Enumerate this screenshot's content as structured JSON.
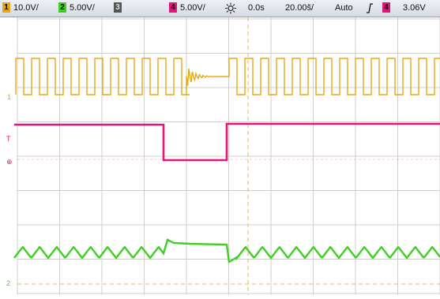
{
  "status_bar": {
    "ch1": {
      "number": "1",
      "scale": "10.0V/",
      "color": "#e8a90e"
    },
    "ch2": {
      "number": "2",
      "scale": "5.00V/",
      "color": "#3fcf23"
    },
    "ch3": {
      "number": "3",
      "scale": "",
      "color": "#7a7a7a"
    },
    "ch4": {
      "number": "4",
      "scale": "5.00V/",
      "color": "#e0147a"
    },
    "trigger_icon": "sun-icon",
    "delay": "0.0s",
    "timebase": "20.00š/",
    "mode": "Auto",
    "slope_icon": "rising-edge-icon",
    "trigger_source": "4",
    "trigger_level": "3.06V"
  },
  "markers": {
    "ch1": "1",
    "ch4": "T",
    "ch2": "2"
  },
  "colors": {
    "grid": "#cfcfcf",
    "ch1": "#e8a90e",
    "ch2": "#3fcf23",
    "ch4": "#e0147a"
  }
}
